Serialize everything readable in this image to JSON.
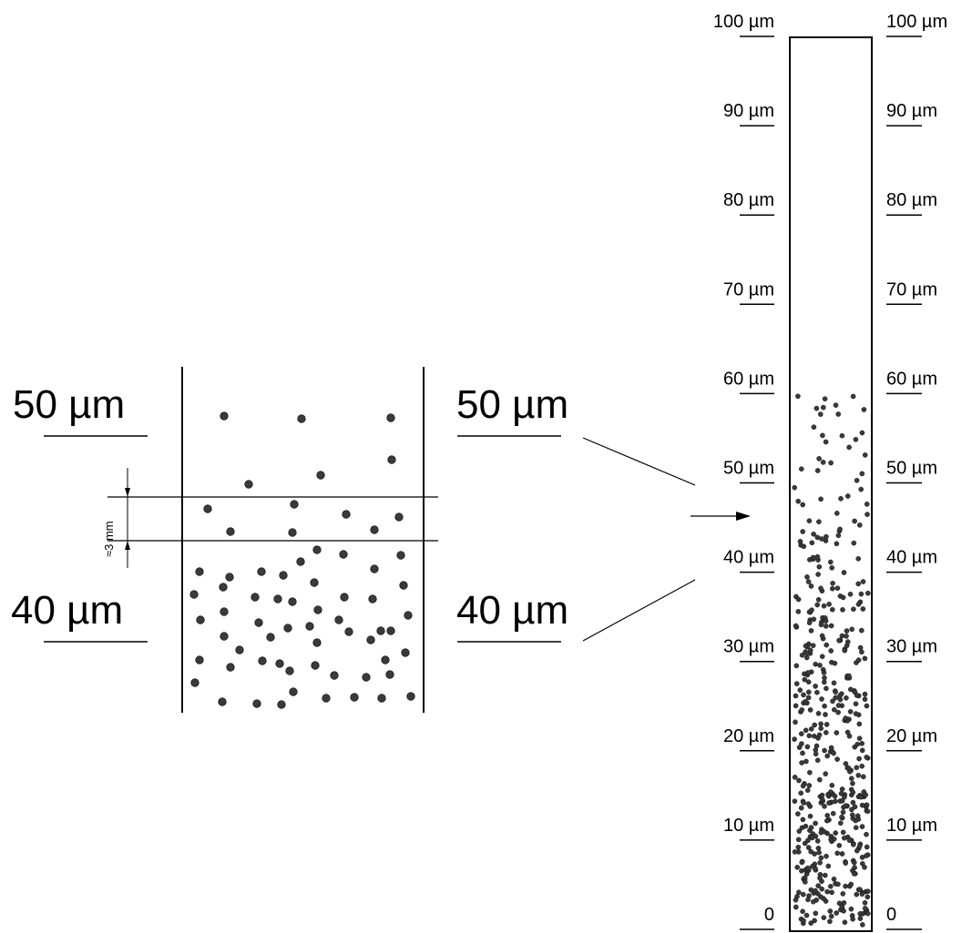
{
  "colors": {
    "line": "#000000",
    "particle": "#3a3a3a",
    "background": "#ffffff"
  },
  "zoom": {
    "top_label_left": "50 µm",
    "top_label_right": "50 µm",
    "bottom_label_left": "40 µm",
    "bottom_label_right": "40 µm",
    "gap_label": "≈3 mm"
  },
  "column": {
    "scale_left": [
      "0",
      "10 µm",
      "20 µm",
      "30 µm",
      "40 µm",
      "50 µm",
      "60 µm",
      "70 µm",
      "80 µm",
      "90 µm",
      "100 µm"
    ],
    "scale_right": [
      "0",
      "10 µm",
      "20 µm",
      "30 µm",
      "40 µm",
      "50 µm",
      "60 µm",
      "70 µm",
      "80 µm",
      "90 µm",
      "100 µm"
    ]
  },
  "icons": {
    "pointer": "arrow-right-icon",
    "dimension": "dimension-arrow-icon"
  }
}
